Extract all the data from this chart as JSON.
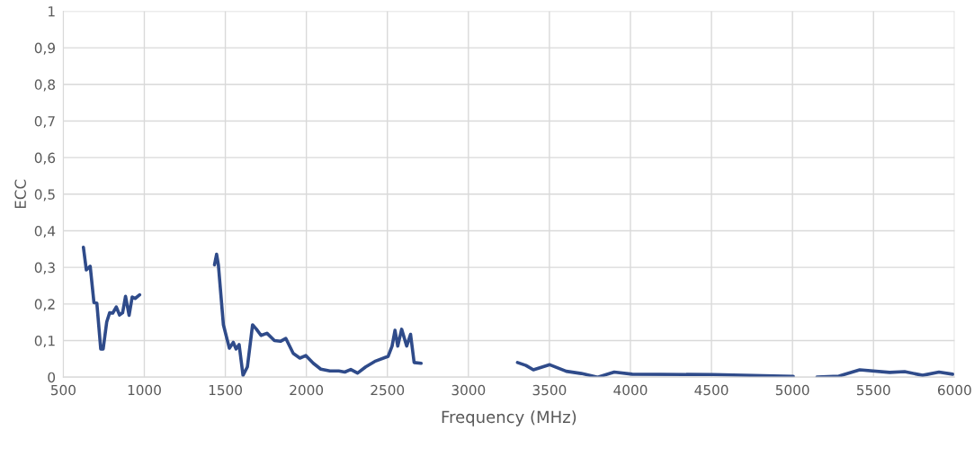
{
  "chart_data": {
    "type": "line",
    "xlabel": "Frequency (MHz)",
    "ylabel": "ECC",
    "xlim": [
      500,
      6000
    ],
    "xticks": [
      500,
      1000,
      1500,
      2000,
      2500,
      3000,
      3500,
      4000,
      4500,
      5000,
      5500,
      6000
    ],
    "ylim": [
      0,
      1
    ],
    "yticks": [
      0,
      {
        "value": 0.1,
        "label": "0,1"
      },
      {
        "value": 0.2,
        "label": "0,2"
      },
      {
        "value": 0.3,
        "label": "0,3"
      },
      {
        "value": 0.4,
        "label": "0,4"
      },
      {
        "value": 0.5,
        "label": "0,5"
      },
      {
        "value": 0.6,
        "label": "0,6"
      },
      {
        "value": 0.7,
        "label": "0,7"
      },
      {
        "value": 0.8,
        "label": "0,8"
      },
      {
        "value": 0.9,
        "label": "0,9"
      },
      1
    ],
    "grid": true,
    "line_style": "solid",
    "marker": "none",
    "series": [
      {
        "color": "#2f4b8a",
        "x": [
          624,
          642,
          666,
          689,
          707,
          731,
          746,
          768,
          786,
          805,
          827,
          847,
          866,
          884,
          906,
          925,
          943,
          971,
          1200,
          1433,
          1446,
          1457,
          1488,
          1525,
          1549,
          1566,
          1585,
          1609,
          1636,
          1668,
          1692,
          1720,
          1757,
          1803,
          1840,
          1873,
          1919,
          1960,
          1997,
          2043,
          2089,
          2145,
          2200,
          2237,
          2274,
          2316,
          2366,
          2422,
          2505,
          2529,
          2547,
          2564,
          2588,
          2619,
          2643,
          2665,
          2708,
          3000,
          3303,
          3355,
          3401,
          3502,
          3604,
          3697,
          3798,
          3900,
          4011,
          4510,
          5005,
          5080,
          5151,
          5286,
          5415,
          5600,
          5692,
          5803,
          5904,
          5988
        ],
        "values": [
          0.355,
          0.293,
          0.303,
          0.204,
          0.202,
          0.077,
          0.077,
          0.151,
          0.176,
          0.175,
          0.192,
          0.17,
          0.176,
          0.221,
          0.169,
          0.219,
          0.215,
          0.225,
          null,
          0.307,
          0.336,
          0.307,
          0.143,
          0.079,
          0.095,
          0.077,
          0.089,
          0.005,
          0.028,
          0.143,
          0.131,
          0.114,
          0.12,
          0.1,
          0.098,
          0.106,
          0.065,
          0.052,
          0.059,
          0.038,
          0.022,
          0.017,
          0.017,
          0.014,
          0.021,
          0.011,
          0.028,
          0.043,
          0.057,
          0.085,
          0.128,
          0.085,
          0.131,
          0.085,
          0.117,
          0.04,
          0.038,
          null,
          0.04,
          0.032,
          0.02,
          0.034,
          0.016,
          0.01,
          0.0,
          0.014,
          0.008,
          0.007,
          0.002,
          null,
          0.0,
          0.003,
          0.02,
          0.013,
          0.015,
          0.005,
          0.014,
          0.008
        ]
      }
    ]
  }
}
